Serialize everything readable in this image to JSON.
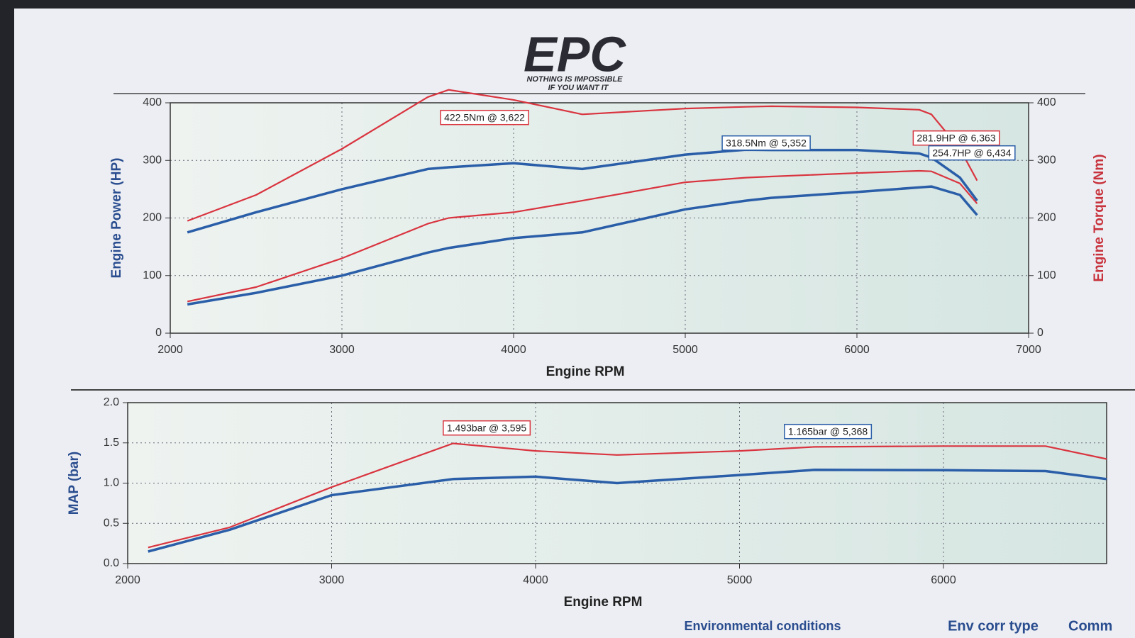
{
  "header": {
    "logo": "EPC",
    "tagline_1": "NOTHING IS IMPOSSIBLE",
    "tagline_2": "IF YOU WANT IT"
  },
  "chart_data": [
    {
      "type": "line",
      "y_label": "Engine Power (HP)",
      "y2_label": "Engine Torque (Nm)",
      "x_label": "Engine RPM",
      "x": [
        2100,
        2500,
        3000,
        3500,
        3622,
        4000,
        4400,
        5000,
        5352,
        5500,
        6000,
        6363,
        6434,
        6600,
        6700
      ],
      "series": [
        {
          "color": "#d9343f",
          "axis": "y2",
          "values": [
            195,
            240,
            320,
            410,
            422.5,
            405,
            380,
            390,
            393,
            394,
            392,
            388,
            380,
            320,
            265
          ]
        },
        {
          "color": "#2a5ea8",
          "axis": "y2",
          "values": [
            175,
            210,
            250,
            285,
            288,
            295,
            285,
            310,
            318.5,
            318,
            318,
            312,
            305,
            270,
            230
          ]
        },
        {
          "color": "#d9343f",
          "values": [
            55,
            80,
            130,
            190,
            200,
            210,
            230,
            262,
            270,
            272,
            278,
            281.9,
            281,
            260,
            225
          ]
        },
        {
          "color": "#2a5ea8",
          "values": [
            50,
            70,
            100,
            140,
            148,
            165,
            175,
            215,
            230,
            235,
            245,
            253,
            254.7,
            240,
            205
          ]
        }
      ],
      "xlim": [
        2000,
        7000
      ],
      "xticks": [
        2000,
        3000,
        4000,
        5000,
        6000,
        7000
      ],
      "ylim": [
        0,
        400
      ],
      "yticks": [
        0,
        100,
        200,
        300,
        400
      ],
      "y2lim": [
        0,
        400
      ],
      "y2ticks": [
        0,
        100,
        200,
        300,
        400
      ],
      "grid": true,
      "annotations": [
        {
          "text": "422.5Nm @ 3,622",
          "color": "#d9343f"
        },
        {
          "text": "318.5Nm @ 5,352",
          "color": "#2a5ea8"
        },
        {
          "text": "281.9HP @ 6,363",
          "color": "#d9343f"
        },
        {
          "text": "254.7HP @ 6,434",
          "color": "#2a5ea8"
        }
      ]
    },
    {
      "type": "line",
      "y_label": "MAP (bar)",
      "x_label": "Engine RPM",
      "x": [
        2100,
        2500,
        3000,
        3595,
        4000,
        4400,
        5000,
        5368,
        6000,
        6500,
        6800
      ],
      "series": [
        {
          "color": "#d9343f",
          "values": [
            0.2,
            0.45,
            0.95,
            1.493,
            1.4,
            1.35,
            1.4,
            1.45,
            1.46,
            1.46,
            1.3
          ]
        },
        {
          "color": "#2a5ea8",
          "values": [
            0.15,
            0.42,
            0.85,
            1.05,
            1.08,
            1.0,
            1.1,
            1.165,
            1.16,
            1.15,
            1.05
          ]
        }
      ],
      "xlim": [
        2000,
        6800
      ],
      "xticks": [
        2000,
        3000,
        4000,
        5000,
        6000
      ],
      "ylim": [
        0,
        2
      ],
      "yticks": [
        {
          "value": 0,
          "label": "0.0"
        },
        0.5,
        {
          "value": 1,
          "label": "1.0"
        },
        1.5,
        {
          "value": 2,
          "label": "2.0"
        }
      ],
      "grid": true,
      "annotations": [
        {
          "text": "1.493bar @ 3,595",
          "color": "#d9343f"
        },
        {
          "text": "1.165bar @ 5,368",
          "color": "#2a5ea8"
        }
      ]
    }
  ],
  "footer": {
    "conditions": "Environmental conditions",
    "corr_type": "Env corr type",
    "comm": "Comm"
  }
}
